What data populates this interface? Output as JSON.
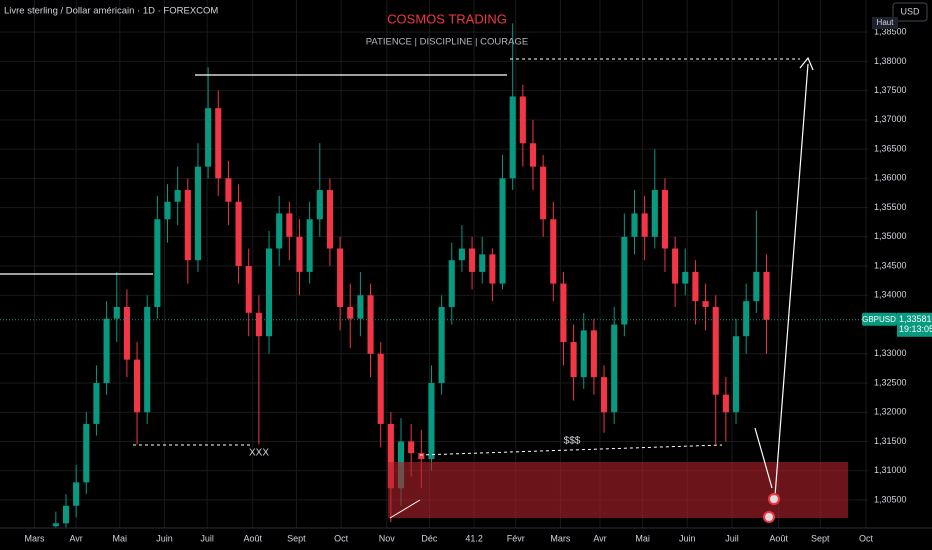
{
  "chart_data": {
    "type": "candlestick",
    "symbol_title": "Livre sterling / Dollar américain · 1D · FOREXCOM",
    "title": "COSMOS TRADING",
    "subtitle": "PATIENCE  |  DISCIPLINE  |  COURAGE",
    "currency": "USD",
    "high_label": "Haut",
    "symbol": "GBPUSD",
    "last_price": {
      "value": 1.33581,
      "label": "1,33581"
    },
    "countdown": "19:13:05",
    "annotations": [
      "XXX",
      "$$$"
    ],
    "up_color": "#089981",
    "down_color": "#f23645",
    "grid": true,
    "x": [
      0,
      1,
      2,
      3,
      4,
      5,
      6,
      7,
      8,
      9,
      10,
      11,
      12,
      13,
      14,
      15,
      16,
      17,
      18,
      19,
      20,
      21,
      22,
      23,
      24,
      25,
      26,
      27,
      28,
      29,
      30,
      31,
      32,
      33,
      34,
      35,
      36,
      37,
      38,
      39,
      40,
      41,
      42,
      43,
      44,
      45,
      46,
      47,
      48,
      49,
      50,
      51,
      52,
      53,
      54,
      55,
      56,
      57,
      58,
      59,
      60,
      61,
      62,
      63,
      64,
      65,
      66,
      67,
      68,
      69,
      70
    ],
    "open": [
      1.3005,
      1.301,
      1.304,
      1.308,
      1.318,
      1.325,
      1.336,
      1.338,
      1.329,
      1.32,
      1.338,
      1.353,
      1.356,
      1.358,
      1.346,
      1.362,
      1.372,
      1.36,
      1.356,
      1.345,
      1.337,
      1.333,
      1.348,
      1.354,
      1.35,
      1.344,
      1.353,
      1.358,
      1.348,
      1.338,
      1.336,
      1.34,
      1.33,
      1.318,
      1.307,
      1.315,
      1.313,
      1.312,
      1.325,
      1.338,
      1.346,
      1.348,
      1.344,
      1.347,
      1.342,
      1.36,
      1.374,
      1.366,
      1.362,
      1.353,
      1.342,
      1.332,
      1.326,
      1.334,
      1.326,
      1.32,
      1.335,
      1.35,
      1.354,
      1.35,
      1.358,
      1.348,
      1.342,
      1.344,
      1.339,
      1.338,
      1.323,
      1.32,
      1.333,
      1.339,
      1.344
    ],
    "high": [
      1.303,
      1.306,
      1.311,
      1.32,
      1.328,
      1.339,
      1.344,
      1.341,
      1.332,
      1.34,
      1.357,
      1.359,
      1.362,
      1.36,
      1.366,
      1.379,
      1.375,
      1.363,
      1.359,
      1.348,
      1.34,
      1.351,
      1.357,
      1.356,
      1.353,
      1.356,
      1.366,
      1.36,
      1.35,
      1.342,
      1.344,
      1.342,
      1.332,
      1.32,
      1.319,
      1.318,
      1.317,
      1.328,
      1.34,
      1.349,
      1.352,
      1.35,
      1.35,
      1.348,
      1.364,
      1.3865,
      1.376,
      1.37,
      1.364,
      1.356,
      1.344,
      1.335,
      1.337,
      1.336,
      1.328,
      1.338,
      1.354,
      1.358,
      1.357,
      1.365,
      1.36,
      1.35,
      1.348,
      1.346,
      1.342,
      1.34,
      1.326,
      1.336,
      1.342,
      1.3545,
      1.347
    ],
    "low": [
      1.3003,
      1.3003,
      1.302,
      1.306,
      1.316,
      1.323,
      1.332,
      1.326,
      1.3145,
      1.318,
      1.336,
      1.349,
      1.352,
      1.342,
      1.344,
      1.36,
      1.357,
      1.352,
      1.342,
      1.333,
      1.3145,
      1.33,
      1.345,
      1.346,
      1.34,
      1.342,
      1.35,
      1.345,
      1.334,
      1.331,
      1.333,
      1.326,
      1.314,
      1.3012,
      1.304,
      1.309,
      1.307,
      1.31,
      1.323,
      1.335,
      1.344,
      1.341,
      1.342,
      1.339,
      1.341,
      1.358,
      1.362,
      1.358,
      1.35,
      1.339,
      1.328,
      1.322,
      1.324,
      1.323,
      1.3165,
      1.318,
      1.333,
      1.347,
      1.346,
      1.348,
      1.344,
      1.338,
      1.34,
      1.335,
      1.334,
      1.3145,
      1.315,
      1.318,
      1.33,
      1.337,
      1.33
    ],
    "close": [
      1.301,
      1.304,
      1.308,
      1.318,
      1.325,
      1.336,
      1.338,
      1.329,
      1.32,
      1.338,
      1.353,
      1.356,
      1.358,
      1.346,
      1.362,
      1.372,
      1.36,
      1.356,
      1.345,
      1.337,
      1.333,
      1.348,
      1.354,
      1.35,
      1.344,
      1.353,
      1.358,
      1.348,
      1.338,
      1.336,
      1.34,
      1.33,
      1.318,
      1.307,
      1.315,
      1.313,
      1.312,
      1.325,
      1.338,
      1.346,
      1.348,
      1.344,
      1.347,
      1.342,
      1.36,
      1.374,
      1.366,
      1.362,
      1.353,
      1.342,
      1.332,
      1.326,
      1.334,
      1.326,
      1.32,
      1.335,
      1.35,
      1.354,
      1.35,
      1.358,
      1.348,
      1.342,
      1.344,
      1.339,
      1.338,
      1.323,
      1.32,
      1.333,
      1.339,
      1.344,
      1.33581
    ],
    "xlim": [
      -5.5,
      80
    ],
    "xticks": [
      {
        "value": -2.1,
        "label": "Mars"
      },
      {
        "value": 2.0,
        "label": "Avr"
      },
      {
        "value": 6.3,
        "label": "Mai"
      },
      {
        "value": 10.7,
        "label": "Juin"
      },
      {
        "value": 14.9,
        "label": "Juil"
      },
      {
        "value": 19.4,
        "label": "Août"
      },
      {
        "value": 23.7,
        "label": "Sept"
      },
      {
        "value": 28.1,
        "label": "Oct"
      },
      {
        "value": 32.6,
        "label": "Nov"
      },
      {
        "value": 36.8,
        "label": "Déc"
      },
      41.2,
      {
        "value": 45.3,
        "label": "Févr"
      },
      {
        "value": 49.7,
        "label": "Mars"
      },
      {
        "value": 53.6,
        "label": "Avr"
      },
      {
        "value": 57.8,
        "label": "Mai"
      },
      {
        "value": 62.2,
        "label": "Juin"
      },
      {
        "value": 66.6,
        "label": "Juil"
      },
      {
        "value": 71.2,
        "label": "Août"
      },
      {
        "value": 75.3,
        "label": "Sept"
      },
      {
        "value": 79.8,
        "label": "Oct"
      }
    ],
    "ylim": [
      1.3002,
      1.3905
    ],
    "yticks": [
      {
        "value": 1.305,
        "label": "1,30500"
      },
      {
        "value": 1.31,
        "label": "1,31000"
      },
      {
        "value": 1.315,
        "label": "1,31500"
      },
      {
        "value": 1.32,
        "label": "1,32000"
      },
      {
        "value": 1.325,
        "label": "1,32500"
      },
      {
        "value": 1.33,
        "label": "1,33000"
      },
      {
        "value": 1.34,
        "label": "1,34000"
      },
      {
        "value": 1.345,
        "label": "1,34500"
      },
      {
        "value": 1.35,
        "label": "1,35000"
      },
      {
        "value": 1.355,
        "label": "1,35500"
      },
      {
        "value": 1.36,
        "label": "1,36000"
      },
      {
        "value": 1.365,
        "label": "1,36500"
      },
      {
        "value": 1.37,
        "label": "1,37000"
      },
      {
        "value": 1.375,
        "label": "1,37500"
      },
      {
        "value": 1.38,
        "label": "1,38000"
      },
      {
        "value": 1.385,
        "label": "1,38500"
      }
    ]
  }
}
